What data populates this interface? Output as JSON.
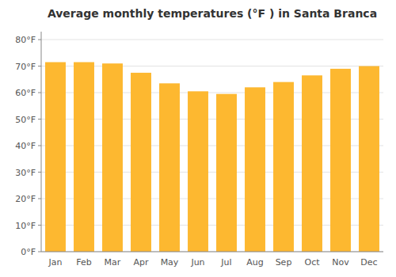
{
  "chart_data": {
    "type": "bar",
    "title": "Average monthly temperatures (°F ) in Santa Branca",
    "categories": [
      "Jan",
      "Feb",
      "Mar",
      "Apr",
      "May",
      "Jun",
      "Jul",
      "Aug",
      "Sep",
      "Oct",
      "Nov",
      "Dec"
    ],
    "values": [
      71.5,
      71.5,
      71.0,
      67.5,
      63.5,
      60.5,
      59.5,
      62.0,
      64.0,
      66.5,
      69.0,
      70.0
    ],
    "color": "#FDB830",
    "ylim": [
      0,
      83
    ],
    "yticks": [
      {
        "value": 0,
        "label": "0°F"
      },
      {
        "value": 10,
        "label": "10°F"
      },
      {
        "value": 20,
        "label": "20°F"
      },
      {
        "value": 30,
        "label": "30°F"
      },
      {
        "value": 40,
        "label": "40°F"
      },
      {
        "value": 50,
        "label": "50°F"
      },
      {
        "value": 60,
        "label": "60°F"
      },
      {
        "value": 70,
        "label": "70°F"
      },
      {
        "value": 80,
        "label": "80°F"
      }
    ],
    "grid": true
  }
}
